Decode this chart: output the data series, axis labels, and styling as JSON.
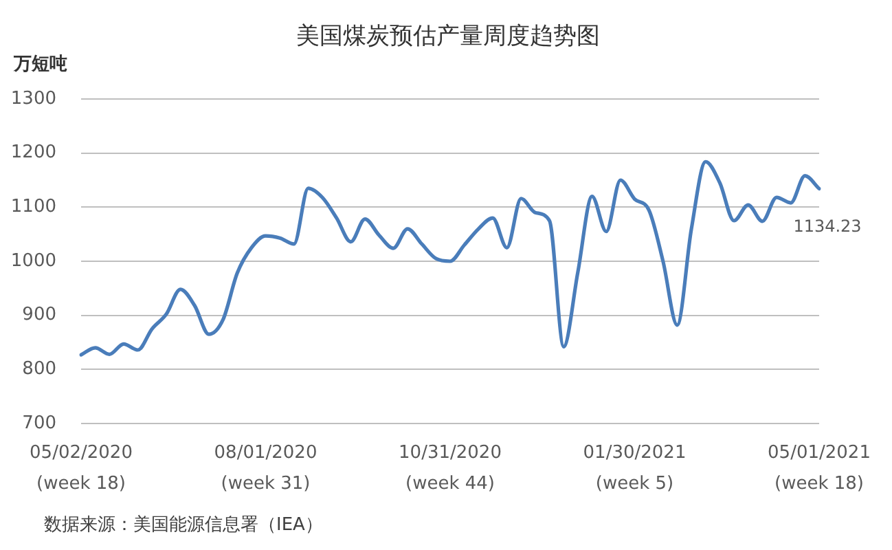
{
  "chart_data": {
    "type": "line",
    "title": "美国煤炭预估产量周度趋势图",
    "ylabel": "万短吨",
    "annotations": [
      "数据来源：美国能源信息署（IEA）"
    ],
    "categories": [
      "05/02/2020\n(week 18)",
      null,
      null,
      null,
      null,
      null,
      null,
      null,
      null,
      null,
      null,
      null,
      null,
      "08/01/2020\n(week 31)",
      null,
      null,
      null,
      null,
      null,
      null,
      null,
      null,
      null,
      null,
      null,
      null,
      "10/31/2020\n(week 44)",
      null,
      null,
      null,
      null,
      null,
      null,
      null,
      null,
      null,
      null,
      null,
      null,
      "01/30/2021\n(week 5)",
      null,
      null,
      null,
      null,
      null,
      null,
      null,
      null,
      null,
      null,
      null,
      null,
      "05/01/2021\n(week 18)"
    ],
    "values": [
      827,
      840,
      828,
      847,
      836,
      875,
      902,
      948,
      918,
      865,
      892,
      978,
      1025,
      1047,
      1043,
      1032,
      1135,
      1118,
      1080,
      1036,
      1078,
      1048,
      1024,
      1060,
      1032,
      1005,
      1000,
      1030,
      1060,
      1080,
      1025,
      1116,
      1090,
      1075,
      842,
      980,
      1120,
      1055,
      1150,
      1115,
      1095,
      1000,
      882,
      1060,
      1184,
      1145,
      1075,
      1104,
      1074,
      1118,
      1108,
      1158,
      1134.23
    ],
    "value_labels": [
      null,
      null,
      null,
      null,
      null,
      null,
      null,
      null,
      null,
      null,
      null,
      null,
      null,
      null,
      null,
      null,
      null,
      null,
      null,
      null,
      null,
      null,
      null,
      null,
      null,
      null,
      null,
      null,
      null,
      null,
      null,
      null,
      null,
      null,
      null,
      null,
      null,
      null,
      null,
      null,
      null,
      null,
      null,
      null,
      null,
      null,
      null,
      null,
      null,
      null,
      null,
      null,
      "1134.23"
    ],
    "color": "#4a7dba",
    "ylim": [
      700,
      1300
    ],
    "yticks": [
      700,
      800,
      900,
      1000,
      1100,
      1200,
      1300
    ],
    "grid": "y"
  }
}
